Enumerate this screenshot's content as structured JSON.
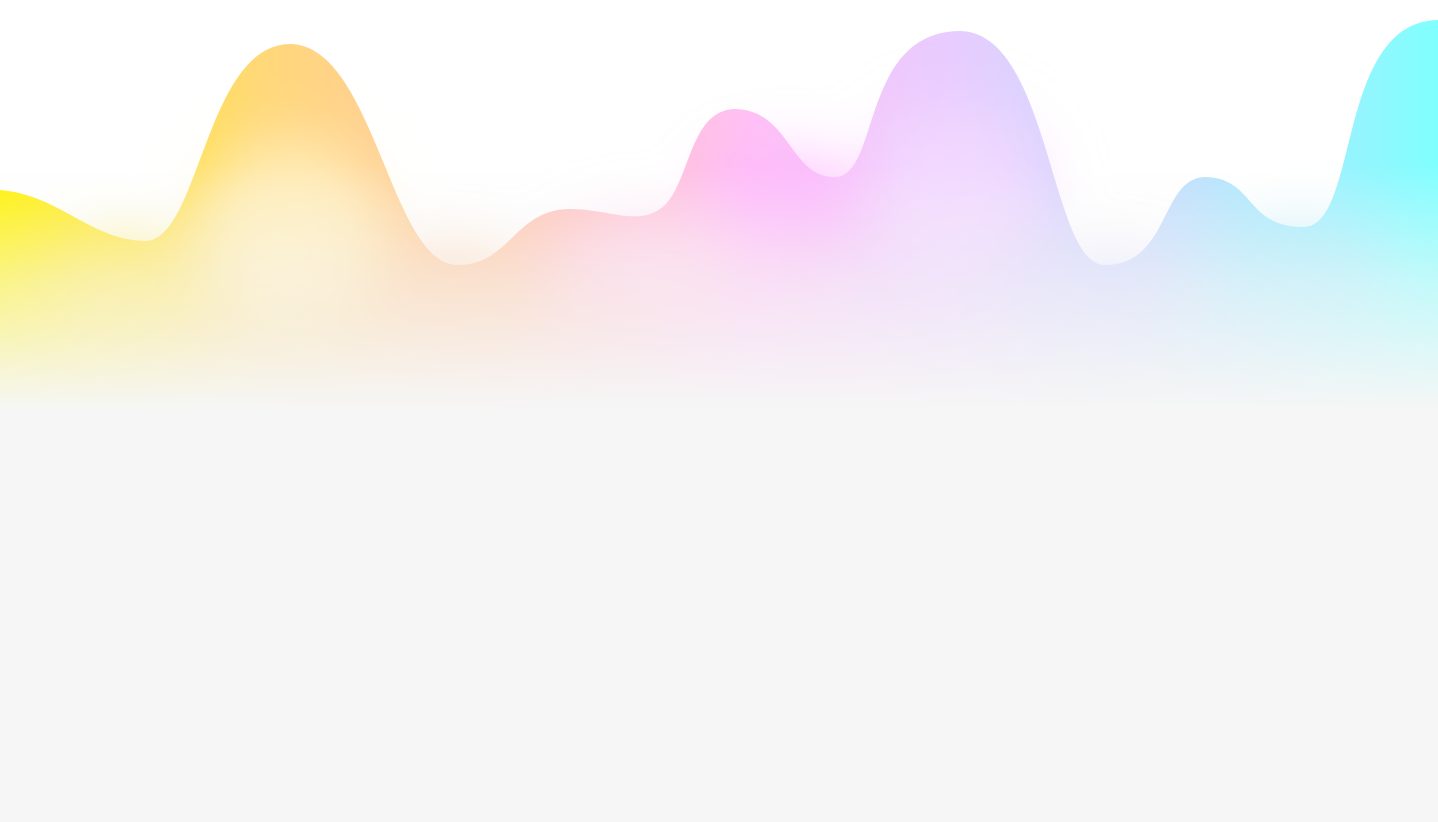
{
  "background": {
    "top_color": "#ffffff",
    "base_color": "#f6f6f6"
  },
  "wave": {
    "gradient_colors": [
      "#fff200",
      "#ffd878",
      "#ffc6ae",
      "#ffc0f4",
      "#e8ccff",
      "#c8dcfc",
      "#80ffff"
    ],
    "glow_colors": [
      "#ffe85a",
      "#fff6cf",
      "#ffc79a",
      "#ffd6ee",
      "#ffb6ff",
      "#f6dcff",
      "#d2d2ff",
      "#a8eafc"
    ]
  }
}
